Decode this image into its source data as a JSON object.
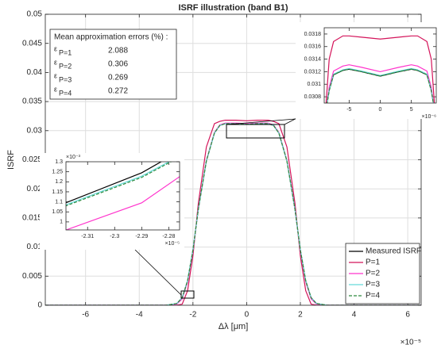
{
  "chart_data": [
    {
      "type": "line",
      "title": "ISRF illustration (band B1)",
      "x_label": "Δλ [μm]",
      "y_label": "ISRF",
      "x_multiplier": "×10⁻⁵",
      "xlim": [
        -7.5,
        6.5
      ],
      "xticks": [
        -6,
        -4,
        -2,
        0,
        2,
        4,
        6
      ],
      "ylim": [
        0,
        0.05
      ],
      "yticks": [
        0,
        0.005,
        0.01,
        0.015,
        0.02,
        0.025,
        0.03,
        0.035,
        0.04,
        0.045,
        0.05
      ],
      "grid": true,
      "legend": "lower right",
      "x": [
        -7.5,
        -3,
        -2.6,
        -2.4,
        -2.2,
        -2,
        -1.8,
        -1.5,
        -1.2,
        -1,
        -0.8,
        -0.4,
        0,
        0.4,
        0.8,
        1,
        1.2,
        1.5,
        1.8,
        2,
        2.2,
        2.4,
        2.6,
        3,
        6.5
      ],
      "series": [
        {
          "name": "Measured ISRF",
          "color": "#000000",
          "values": [
            0,
            0,
            0.0003,
            0.0013,
            0.0042,
            0.0095,
            0.0165,
            0.0248,
            0.0296,
            0.0309,
            0.0312,
            0.0312,
            0.0311,
            0.0312,
            0.0312,
            0.0309,
            0.0296,
            0.0248,
            0.0165,
            0.0095,
            0.0042,
            0.0013,
            0.0003,
            0,
            0
          ]
        },
        {
          "name": "P=1",
          "color": "#d4145a",
          "values": [
            0,
            0,
            0,
            0.0002,
            0.0025,
            0.0085,
            0.0175,
            0.0272,
            0.0312,
            0.0316,
            0.0318,
            0.0318,
            0.0317,
            0.0318,
            0.0318,
            0.0316,
            0.0312,
            0.0272,
            0.0175,
            0.0085,
            0.0025,
            0.0002,
            0,
            0,
            0
          ]
        },
        {
          "name": "P=2",
          "color": "#ff33cc",
          "values": [
            0,
            0,
            0.0002,
            0.0011,
            0.004,
            0.0094,
            0.0165,
            0.0249,
            0.0297,
            0.031,
            0.0313,
            0.0313,
            0.0312,
            0.0313,
            0.0313,
            0.031,
            0.0297,
            0.0249,
            0.0165,
            0.0094,
            0.004,
            0.0011,
            0.0002,
            0,
            0
          ]
        },
        {
          "name": "P=3",
          "color": "#66d9d9",
          "values": [
            0,
            0,
            0.0003,
            0.0013,
            0.0042,
            0.0095,
            0.0165,
            0.0248,
            0.0296,
            0.0309,
            0.0312,
            0.0312,
            0.0311,
            0.0312,
            0.0312,
            0.0309,
            0.0296,
            0.0248,
            0.0165,
            0.0095,
            0.0042,
            0.0013,
            0.0003,
            0,
            0
          ]
        },
        {
          "name": "P=4",
          "color": "#2e8b3e",
          "dashed": true,
          "values": [
            0,
            0,
            0.0003,
            0.0013,
            0.0042,
            0.0095,
            0.0165,
            0.0248,
            0.0296,
            0.0309,
            0.0312,
            0.0312,
            0.0311,
            0.0312,
            0.0312,
            0.0309,
            0.0296,
            0.0248,
            0.0165,
            0.0095,
            0.0042,
            0.0013,
            0.0003,
            0,
            0
          ]
        }
      ],
      "error_box": {
        "title": "Mean approximation errors (%) :",
        "symbol": "ε",
        "rows": [
          {
            "label": "P=1",
            "value": 2.088
          },
          {
            "label": "P=2",
            "value": 0.306
          },
          {
            "label": "P=3",
            "value": 0.269
          },
          {
            "label": "P=4",
            "value": 0.272
          }
        ]
      }
    },
    {
      "type": "line",
      "x_multiplier": "×10⁻⁶",
      "xlim": [
        -9,
        9
      ],
      "xticks": [
        -5,
        0,
        5
      ],
      "ylim": [
        0.0307,
        0.0319
      ],
      "yticks": [
        0.0308,
        0.031,
        0.0312,
        0.0314,
        0.0316,
        0.0318
      ],
      "grid": false,
      "x": [
        -8.7,
        -8.2,
        -7.5,
        -6,
        -5,
        -3,
        0,
        3,
        5,
        6,
        7.5,
        8.2,
        8.7
      ],
      "series": [
        {
          "color": "#000000",
          "values": [
            0.0306,
            0.0309,
            0.03115,
            0.03122,
            0.03124,
            0.0312,
            0.03113,
            0.0312,
            0.03124,
            0.03122,
            0.03115,
            0.0309,
            0.0306
          ]
        },
        {
          "color": "#d4145a",
          "values": [
            0.0307,
            0.0314,
            0.03168,
            0.03177,
            0.03177,
            0.03175,
            0.03172,
            0.03175,
            0.03177,
            0.03177,
            0.03168,
            0.0314,
            0.0307
          ]
        },
        {
          "color": "#ff33cc",
          "values": [
            0.0306,
            0.03095,
            0.03121,
            0.03129,
            0.03131,
            0.03127,
            0.0312,
            0.03127,
            0.03131,
            0.03129,
            0.03121,
            0.03095,
            0.0306
          ]
        },
        {
          "color": "#66d9d9",
          "values": [
            0.0306,
            0.0309,
            0.03116,
            0.03123,
            0.03125,
            0.03121,
            0.03114,
            0.03121,
            0.03125,
            0.03123,
            0.03116,
            0.0309,
            0.0306
          ]
        },
        {
          "color": "#2e8b3e",
          "dashed": true,
          "values": [
            0.0306,
            0.0309,
            0.03115,
            0.03122,
            0.03124,
            0.0312,
            0.03113,
            0.0312,
            0.03124,
            0.03122,
            0.03115,
            0.0309,
            0.0306
          ]
        }
      ]
    },
    {
      "type": "line",
      "x_multiplier": "×10⁻⁵",
      "y_multiplier": "×10⁻³",
      "xlim": [
        -2.318,
        -2.276
      ],
      "xticks": [
        -2.31,
        -2.3,
        -2.29,
        -2.28
      ],
      "ylim": [
        0.96,
        1.3
      ],
      "yticks": [
        1,
        1.05,
        1.1,
        1.15,
        1.2,
        1.25,
        1.3
      ],
      "grid": false,
      "x": [
        -2.32,
        -2.29,
        -2.275
      ],
      "series": [
        {
          "color": "#000000",
          "values": [
            1.085,
            1.245,
            1.36
          ]
        },
        {
          "color": "#ff33cc",
          "values": [
            0.95,
            1.095,
            1.235
          ]
        },
        {
          "color": "#66d9d9",
          "values": [
            1.075,
            1.228,
            1.335
          ]
        },
        {
          "color": "#2e8b3e",
          "dashed": true,
          "values": [
            1.07,
            1.222,
            1.33
          ]
        }
      ]
    }
  ]
}
